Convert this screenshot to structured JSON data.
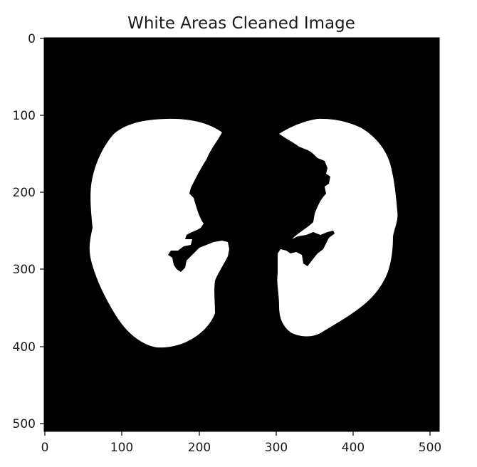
{
  "figure": {
    "title": "White Areas Cleaned Image",
    "x_ticks": [
      "0",
      "100",
      "200",
      "300",
      "400",
      "500"
    ],
    "y_ticks": [
      "0",
      "100",
      "200",
      "300",
      "400",
      "500"
    ],
    "x_range": [
      0,
      512
    ],
    "y_range": [
      0,
      512
    ],
    "background_color": "#000000",
    "foreground_color": "#ffffff"
  }
}
